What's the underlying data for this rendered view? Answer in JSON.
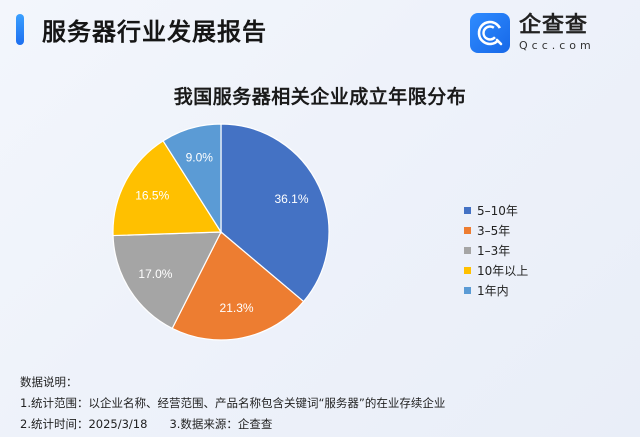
{
  "header": {
    "title": "服务器行业发展报告",
    "accent_color": "#1d6ff0"
  },
  "logo": {
    "icon": "qcc-logo-icon",
    "name_cn": "企查查",
    "name_en": "Qcc.com"
  },
  "chart_data": {
    "type": "pie",
    "title": "我国服务器相关企业成立年限分布",
    "categories": [
      "5-10年",
      "3-5年",
      "1-3年",
      "10年以上",
      "1年内"
    ],
    "values": [
      36.1,
      21.3,
      17.0,
      16.5,
      9.0
    ],
    "labels": [
      "36.1%",
      "21.3%",
      "17.0%",
      "16.5%",
      "9.0%"
    ],
    "colors": [
      "#4472c4",
      "#ed7d31",
      "#a5a5a5",
      "#ffc000",
      "#5b9bd5"
    ],
    "start_angle": "12 o'clock, clockwise",
    "legend_position": "right",
    "unit": "%"
  },
  "legend": {
    "items": [
      {
        "label": "5–10年",
        "color": "#4472c4"
      },
      {
        "label": "3–5年",
        "color": "#ed7d31"
      },
      {
        "label": "1–3年",
        "color": "#a5a5a5"
      },
      {
        "label": "10年以上",
        "color": "#ffc000"
      },
      {
        "label": "1年内",
        "color": "#5b9bd5"
      }
    ]
  },
  "notes": {
    "heading": "数据说明：",
    "line1": "1.统计范围：以企业名称、经营范围、产品名称包含关键词“服务器”的在业存续企业",
    "line2a": "2.统计时间：2025/3/18",
    "line2b": "3.数据来源：企查查"
  }
}
